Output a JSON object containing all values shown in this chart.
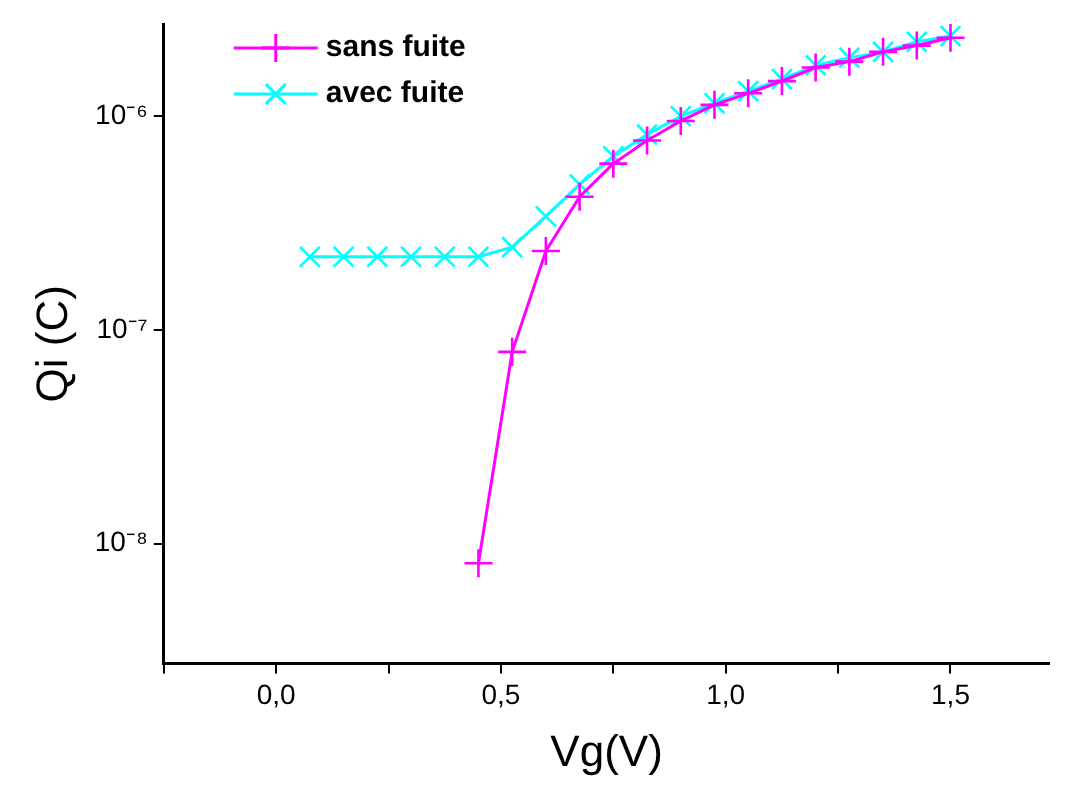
{
  "chart_data": {
    "type": "line",
    "xlabel": "Vg(V)",
    "ylabel": "Qi (C)",
    "log": "y",
    "legend": "top left",
    "grid": false,
    "xlim": [
      -0.25,
      1.72
    ],
    "xticks": [
      {
        "value": -0.25,
        "label": null
      },
      {
        "value": 0,
        "label": "0,0"
      },
      {
        "value": 0.25,
        "label": null
      },
      {
        "value": 0.5,
        "label": "0,5"
      },
      {
        "value": 0.75,
        "label": null
      },
      {
        "value": 1.0,
        "label": "1,0"
      },
      {
        "value": 1.25,
        "label": null
      },
      {
        "value": 1.5,
        "label": "1,5"
      }
    ],
    "ylim": [
      2.75e-09,
      2.7e-06
    ],
    "yticks": [
      {
        "value": 1e-08,
        "label": "10⁻⁸"
      },
      {
        "value": 1e-07,
        "label": "10⁻⁷"
      },
      {
        "value": 1e-06,
        "label": "10⁻⁶"
      }
    ],
    "series": [
      {
        "name": "sans fuite",
        "color": "#ff00ff",
        "marker": "plus",
        "x": [
          0.45,
          0.525,
          0.6,
          0.675,
          0.75,
          0.825,
          0.9,
          0.975,
          1.05,
          1.125,
          1.2,
          1.275,
          1.35,
          1.425,
          1.5
        ],
        "values": [
          8.1e-09,
          7.9e-08,
          2.34e-07,
          4.2e-07,
          6e-07,
          7.7e-07,
          9.5e-07,
          1.13e-06,
          1.28e-06,
          1.46e-06,
          1.69e-06,
          1.8e-06,
          2e-06,
          2.14e-06,
          2.33e-06
        ]
      },
      {
        "name": "avec fuite",
        "color": "#00ffff",
        "marker": "cross",
        "x": [
          0.075,
          0.15,
          0.225,
          0.3,
          0.375,
          0.45,
          0.525,
          0.6,
          0.675,
          0.75,
          0.825,
          0.9,
          0.975,
          1.05,
          1.125,
          1.2,
          1.275,
          1.35,
          1.425,
          1.5
        ],
        "values": [
          2.2e-07,
          2.2e-07,
          2.2e-07,
          2.2e-07,
          2.2e-07,
          2.2e-07,
          2.44e-07,
          3.4e-07,
          4.8e-07,
          6.5e-07,
          8.2e-07,
          1e-06,
          1.15e-06,
          1.31e-06,
          1.49e-06,
          1.73e-06,
          1.88e-06,
          2e-06,
          2.23e-06,
          2.37e-06
        ]
      }
    ]
  }
}
